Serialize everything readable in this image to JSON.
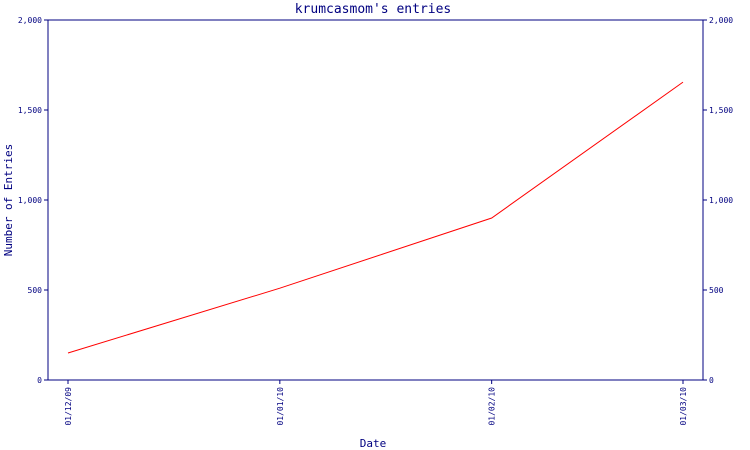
{
  "chart_data": {
    "type": "line",
    "title": "krumcasmom's entries",
    "xlabel": "Date",
    "ylabel": "Number of Entries",
    "x": [
      "01/12/09",
      "01/01/10",
      "01/02/10",
      "01/03/10"
    ],
    "series": [
      {
        "values": [
          150,
          510,
          900,
          1655
        ]
      }
    ],
    "ylim": [
      0,
      2000
    ],
    "yticks": [
      0,
      500,
      1000,
      1500,
      2000
    ],
    "ytick_labels": [
      "0",
      "500",
      "1,000",
      "1,500",
      "2,000"
    ],
    "grid": false,
    "colors": {
      "axis": "#000080",
      "line": "#ff0000",
      "text": "#000080"
    }
  }
}
